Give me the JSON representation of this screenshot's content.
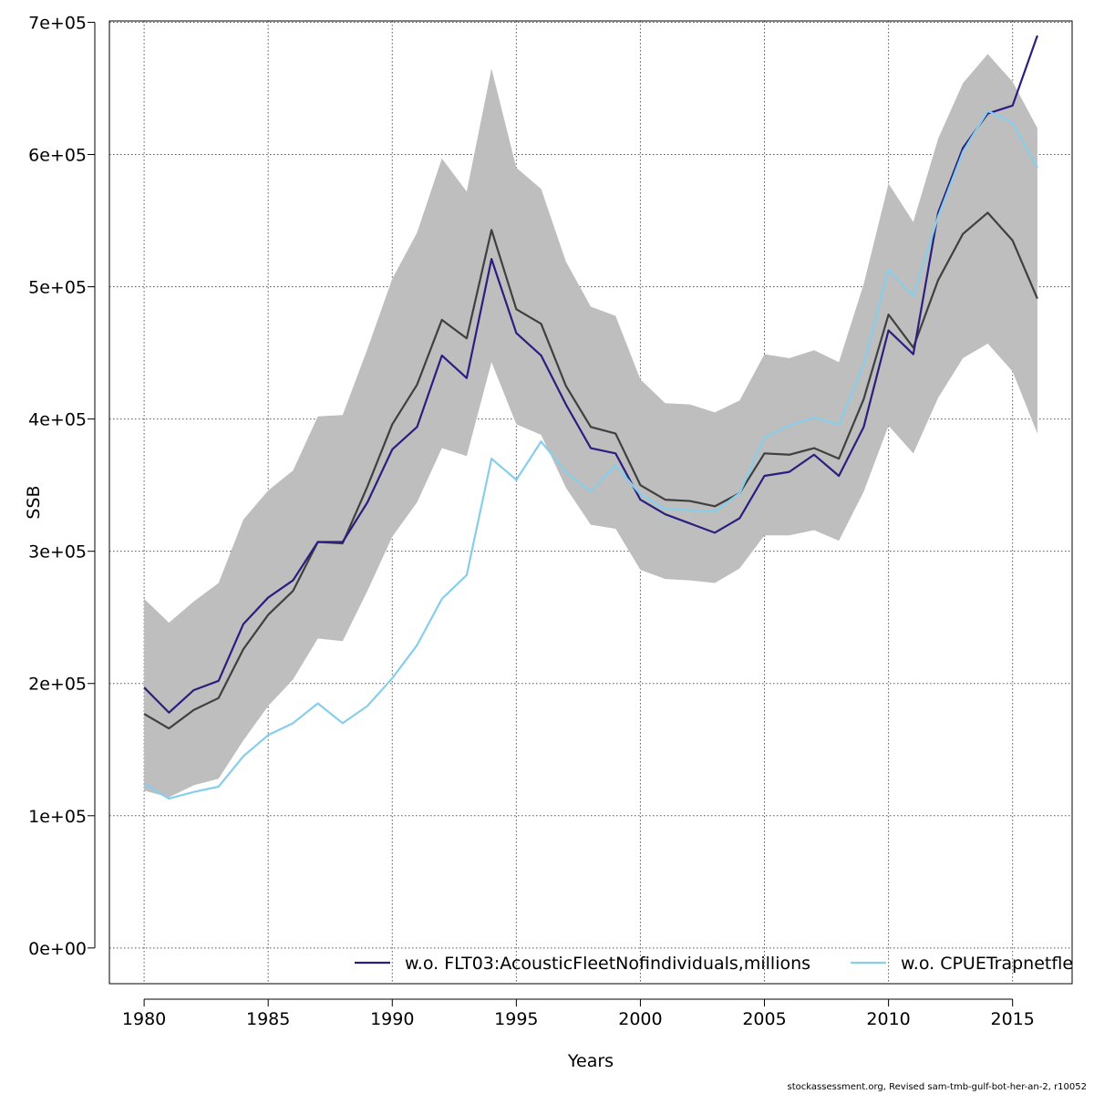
{
  "chart_data": {
    "type": "line",
    "title": "",
    "xlabel": "Years",
    "ylabel": "SSB",
    "xlim": [
      1978.6,
      2017.4
    ],
    "ylim": [
      -27000,
      701000
    ],
    "grid": true,
    "legend_position": "bottom-right",
    "x_ticks": [
      1980,
      1985,
      1990,
      1995,
      2000,
      2005,
      2010,
      2015
    ],
    "x_tick_labels": [
      "1980",
      "1985",
      "1990",
      "1995",
      "2000",
      "2005",
      "2010",
      "2015"
    ],
    "y_ticks": [
      0,
      100000,
      200000,
      300000,
      400000,
      500000,
      600000,
      700000
    ],
    "y_tick_labels": [
      "0e+00",
      "1e+05",
      "2e+05",
      "3e+05",
      "4e+05",
      "5e+05",
      "6e+05",
      "7e+05"
    ],
    "x": [
      1980,
      1981,
      1982,
      1983,
      1984,
      1985,
      1986,
      1987,
      1988,
      1989,
      1990,
      1991,
      1992,
      1993,
      1994,
      1995,
      1996,
      1997,
      1998,
      1999,
      2000,
      2001,
      2002,
      2003,
      2004,
      2005,
      2006,
      2007,
      2008,
      2009,
      2010,
      2011,
      2012,
      2013,
      2014,
      2015,
      2016
    ],
    "band": {
      "color": "#bebebe",
      "upper": [
        264000,
        246000,
        262000,
        276000,
        324000,
        346000,
        361000,
        402000,
        403000,
        453000,
        506000,
        541000,
        597000,
        572000,
        665000,
        590000,
        574000,
        519000,
        485000,
        478000,
        430000,
        412000,
        411000,
        405000,
        414000,
        449000,
        446000,
        452000,
        443000,
        502000,
        578000,
        549000,
        612000,
        654000,
        676000,
        655000,
        620000
      ],
      "lower": [
        119000,
        114000,
        123000,
        128000,
        157000,
        183000,
        203000,
        234000,
        232000,
        270000,
        311000,
        337000,
        378000,
        372000,
        443000,
        396000,
        388000,
        348000,
        320000,
        317000,
        286000,
        279000,
        278000,
        276000,
        287000,
        312000,
        312000,
        316000,
        308000,
        345000,
        395000,
        374000,
        416000,
        446000,
        457000,
        436000,
        389000
      ]
    },
    "series": [
      {
        "color": "#404040",
        "values": [
          177000,
          166000,
          180000,
          189000,
          226000,
          252000,
          270000,
          307000,
          306000,
          349000,
          396000,
          426000,
          475000,
          461000,
          543000,
          483000,
          472000,
          425000,
          394000,
          389000,
          350000,
          339000,
          338000,
          334000,
          344000,
          374000,
          373000,
          378000,
          370000,
          415000,
          479000,
          454000,
          505000,
          540000,
          556000,
          535000,
          491000
        ]
      },
      {
        "name": "w.o. FLT03:AcousticFleetNofindividuals,millions",
        "color": "#2a1f7e",
        "values": [
          197000,
          178000,
          195000,
          202000,
          245000,
          265000,
          278000,
          307000,
          307000,
          337000,
          377000,
          394000,
          448000,
          431000,
          521000,
          465000,
          448000,
          411000,
          378000,
          374000,
          339000,
          328000,
          321000,
          314000,
          325000,
          357000,
          360000,
          373000,
          357000,
          394000,
          467000,
          449000,
          556000,
          605000,
          631000,
          637000,
          690000
        ]
      },
      {
        "name": "w.o. CPUETrapnetfle",
        "color": "#87ceeb",
        "values": [
          124000,
          113000,
          118000,
          122000,
          145000,
          161000,
          170000,
          185000,
          170000,
          183000,
          204000,
          229000,
          264000,
          282000,
          370000,
          354000,
          383000,
          360000,
          345000,
          365000,
          343000,
          332000,
          331000,
          330000,
          344000,
          386000,
          395000,
          401000,
          396000,
          441000,
          513000,
          493000,
          553000,
          602000,
          633000,
          624000,
          590000
        ]
      }
    ]
  },
  "footer_text": "stockassessment.org, Revised  sam-tmb-gulf-bot-her-an-2, r10052"
}
